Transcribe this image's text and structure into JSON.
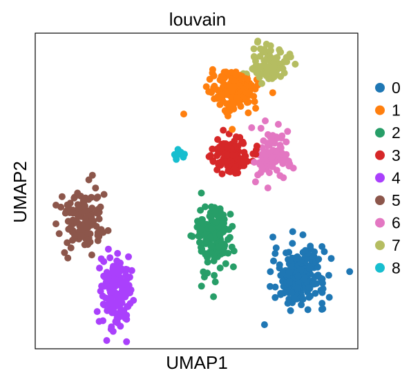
{
  "chart_data": {
    "type": "scatter",
    "title": "louvain",
    "xlabel": "UMAP1",
    "ylabel": "UMAP2",
    "xlim": [
      -8,
      13
    ],
    "ylim": [
      -6,
      12
    ],
    "grid": false,
    "ticks": false,
    "legend": {
      "placement": "right-outside",
      "entries": [
        {
          "label": "0",
          "color": "#1f77b4"
        },
        {
          "label": "1",
          "color": "#ff7f0e"
        },
        {
          "label": "2",
          "color": "#279e68"
        },
        {
          "label": "3",
          "color": "#d62728"
        },
        {
          "label": "4",
          "color": "#aa40fc"
        },
        {
          "label": "5",
          "color": "#8c564b"
        },
        {
          "label": "6",
          "color": "#e377c2"
        },
        {
          "label": "7",
          "color": "#b5bd61"
        },
        {
          "label": "8",
          "color": "#17becf"
        }
      ]
    },
    "clusters": [
      {
        "label": "0",
        "color": "#1f77b4",
        "count": 230,
        "center": [
          9.2,
          -1.9
        ],
        "spread": [
          1.4,
          1.3
        ]
      },
      {
        "label": "1",
        "color": "#ff7f0e",
        "count": 170,
        "center": [
          5.0,
          8.7
        ],
        "spread": [
          1.3,
          0.9
        ]
      },
      {
        "label": "2",
        "color": "#279e68",
        "count": 150,
        "center": [
          3.6,
          0.4
        ],
        "spread": [
          1.0,
          1.8
        ]
      },
      {
        "label": "3",
        "color": "#d62728",
        "count": 120,
        "center": [
          4.8,
          5.1
        ],
        "spread": [
          1.0,
          0.8
        ]
      },
      {
        "label": "4",
        "color": "#aa40fc",
        "count": 140,
        "center": [
          -2.8,
          -2.7
        ],
        "spread": [
          0.8,
          1.8
        ]
      },
      {
        "label": "5",
        "color": "#8c564b",
        "count": 120,
        "center": [
          -4.9,
          1.3
        ],
        "spread": [
          1.3,
          1.5
        ]
      },
      {
        "label": "6",
        "color": "#e377c2",
        "count": 90,
        "center": [
          7.4,
          5.0
        ],
        "spread": [
          1.1,
          1.1
        ]
      },
      {
        "label": "7",
        "color": "#b5bd61",
        "count": 80,
        "center": [
          7.3,
          10.3
        ],
        "spread": [
          1.0,
          0.9
        ]
      },
      {
        "label": "8",
        "color": "#17becf",
        "count": 12,
        "center": [
          1.3,
          5.0
        ],
        "spread": [
          0.35,
          0.35
        ]
      }
    ],
    "seed": 7
  }
}
